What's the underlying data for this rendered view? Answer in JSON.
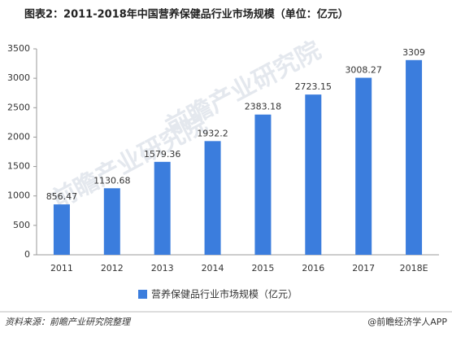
{
  "chart_data": {
    "type": "bar",
    "title": "图表2：2011-2018年中国营养保健品行业市场规模（单位：亿元）",
    "categories": [
      "2011",
      "2012",
      "2013",
      "2014",
      "2015",
      "2016",
      "2017",
      "2018E"
    ],
    "series": [
      {
        "name": "营养保健品行业市场规模（亿元）",
        "color": "#3b7ddd",
        "values": [
          856.47,
          1130.68,
          1579.36,
          1932.2,
          2383.18,
          2723.15,
          3008.27,
          3309
        ]
      }
    ],
    "ylim": [
      0,
      3500
    ],
    "yticks": [
      0,
      500,
      1000,
      1500,
      2000,
      2500,
      3000,
      3500
    ],
    "grid": false,
    "legend": "bottom",
    "source": "资料来源：前瞻产业研究院整理",
    "credit": "@前瞻经济学人APP",
    "watermark": "前瞻产业研究院"
  }
}
